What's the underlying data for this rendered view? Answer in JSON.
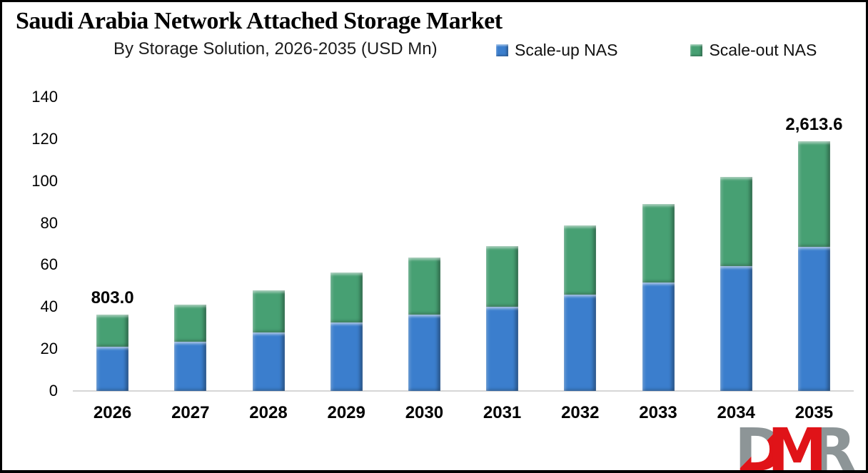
{
  "header": {
    "title": "Saudi Arabia Network Attached Storage Market",
    "subtitle": "By Storage Solution, 2026-2035 (USD Mn)"
  },
  "legend": [
    {
      "label": "Scale-up NAS",
      "color": "#3b7ecd"
    },
    {
      "label": "Scale-out NAS",
      "color": "#47a073"
    }
  ],
  "chart_data": {
    "type": "bar",
    "stacked": true,
    "title": "Saudi Arabia Network Attached Storage Market",
    "subtitle": "By Storage Solution, 2026-2035 (USD Mn)",
    "xlabel": "",
    "ylabel": "",
    "categories": [
      "2026",
      "2027",
      "2028",
      "2029",
      "2030",
      "2031",
      "2032",
      "2033",
      "2034",
      "2035"
    ],
    "series": [
      {
        "name": "Scale-up NAS",
        "color": "#3b7ecd",
        "values": [
          21.0,
          23.5,
          28.0,
          32.5,
          36.5,
          40.0,
          46.0,
          51.5,
          59.5,
          68.5
        ]
      },
      {
        "name": "Scale-out NAS",
        "color": "#47a073",
        "values": [
          15.5,
          17.5,
          20.0,
          24.0,
          27.0,
          29.0,
          33.0,
          37.5,
          42.5,
          50.5
        ]
      }
    ],
    "totals": [
      36.5,
      41.0,
      48.0,
      56.5,
      63.5,
      69.0,
      79.0,
      89.0,
      102.0,
      119.0
    ],
    "point_labels": [
      "803.0",
      "",
      "",
      "",
      "",
      "",
      "",
      "",
      "",
      "2,613.6"
    ],
    "ylim": [
      0,
      140
    ],
    "y_ticks": [
      0,
      20,
      40,
      60,
      80,
      100,
      120,
      140
    ],
    "grid": false,
    "legend_position": "top-right"
  },
  "logo": {
    "text": "DMR",
    "gray": "#8d9597",
    "red": "#e01318"
  }
}
